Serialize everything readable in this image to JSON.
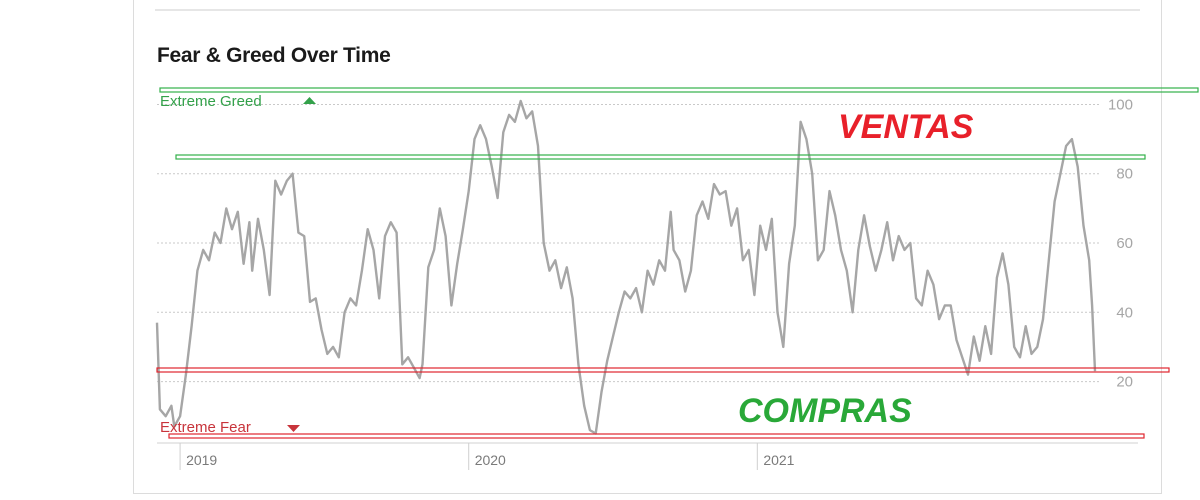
{
  "chart_data": {
    "type": "line",
    "title": "Fear & Greed Over Time",
    "xlabel": "",
    "ylabel": "",
    "ylim": [
      4,
      101
    ],
    "y_ticks": [
      20,
      40,
      60,
      80,
      100
    ],
    "x_ticks": [
      {
        "label": "2019",
        "x": 2019.0
      },
      {
        "label": "2020",
        "x": 2020.0
      },
      {
        "label": "2021",
        "x": 2021.0
      }
    ],
    "grid": true,
    "legend": "none",
    "top_zone_label": "Extreme Greed",
    "bottom_zone_label": "Extreme Fear",
    "line_color": "#a6a6a6",
    "series": [
      {
        "values": [
          [
            2018.92,
            37
          ],
          [
            2018.93,
            12
          ],
          [
            2018.95,
            10
          ],
          [
            2018.97,
            13
          ],
          [
            2018.98,
            7
          ],
          [
            2019.0,
            10
          ],
          [
            2019.02,
            22
          ],
          [
            2019.04,
            36
          ],
          [
            2019.06,
            52
          ],
          [
            2019.08,
            58
          ],
          [
            2019.1,
            55
          ],
          [
            2019.12,
            63
          ],
          [
            2019.14,
            60
          ],
          [
            2019.16,
            70
          ],
          [
            2019.18,
            64
          ],
          [
            2019.2,
            69
          ],
          [
            2019.22,
            54
          ],
          [
            2019.24,
            66
          ],
          [
            2019.25,
            52
          ],
          [
            2019.27,
            67
          ],
          [
            2019.29,
            58
          ],
          [
            2019.31,
            45
          ],
          [
            2019.33,
            78
          ],
          [
            2019.35,
            74
          ],
          [
            2019.37,
            78
          ],
          [
            2019.39,
            80
          ],
          [
            2019.41,
            63
          ],
          [
            2019.43,
            62
          ],
          [
            2019.45,
            43
          ],
          [
            2019.47,
            44
          ],
          [
            2019.49,
            35
          ],
          [
            2019.51,
            28
          ],
          [
            2019.53,
            30
          ],
          [
            2019.55,
            27
          ],
          [
            2019.57,
            40
          ],
          [
            2019.59,
            44
          ],
          [
            2019.61,
            42
          ],
          [
            2019.63,
            52
          ],
          [
            2019.65,
            64
          ],
          [
            2019.67,
            58
          ],
          [
            2019.69,
            44
          ],
          [
            2019.71,
            62
          ],
          [
            2019.73,
            66
          ],
          [
            2019.75,
            63
          ],
          [
            2019.77,
            25
          ],
          [
            2019.79,
            27
          ],
          [
            2019.81,
            24
          ],
          [
            2019.83,
            21
          ],
          [
            2019.84,
            25
          ],
          [
            2019.86,
            53
          ],
          [
            2019.88,
            58
          ],
          [
            2019.9,
            70
          ],
          [
            2019.92,
            62
          ],
          [
            2019.94,
            42
          ],
          [
            2019.96,
            54
          ],
          [
            2019.98,
            64
          ],
          [
            2020.0,
            75
          ],
          [
            2020.02,
            90
          ],
          [
            2020.04,
            94
          ],
          [
            2020.06,
            90
          ],
          [
            2020.08,
            82
          ],
          [
            2020.1,
            73
          ],
          [
            2020.12,
            92
          ],
          [
            2020.14,
            97
          ],
          [
            2020.16,
            95
          ],
          [
            2020.18,
            101
          ],
          [
            2020.2,
            96
          ],
          [
            2020.22,
            98
          ],
          [
            2020.24,
            88
          ],
          [
            2020.26,
            60
          ],
          [
            2020.28,
            52
          ],
          [
            2020.3,
            55
          ],
          [
            2020.32,
            47
          ],
          [
            2020.34,
            53
          ],
          [
            2020.36,
            44
          ],
          [
            2020.38,
            25
          ],
          [
            2020.4,
            13
          ],
          [
            2020.42,
            6
          ],
          [
            2020.44,
            5
          ],
          [
            2020.46,
            17
          ],
          [
            2020.48,
            26
          ],
          [
            2020.5,
            33
          ],
          [
            2020.52,
            40
          ],
          [
            2020.54,
            46
          ],
          [
            2020.56,
            44
          ],
          [
            2020.58,
            47
          ],
          [
            2020.6,
            40
          ],
          [
            2020.62,
            52
          ],
          [
            2020.64,
            48
          ],
          [
            2020.66,
            55
          ],
          [
            2020.68,
            52
          ],
          [
            2020.7,
            69
          ],
          [
            2020.71,
            58
          ],
          [
            2020.73,
            55
          ],
          [
            2020.75,
            46
          ],
          [
            2020.77,
            52
          ],
          [
            2020.79,
            68
          ],
          [
            2020.81,
            72
          ],
          [
            2020.83,
            67
          ],
          [
            2020.85,
            77
          ],
          [
            2020.87,
            74
          ],
          [
            2020.89,
            75
          ],
          [
            2020.91,
            65
          ],
          [
            2020.93,
            70
          ],
          [
            2020.95,
            55
          ],
          [
            2020.97,
            58
          ],
          [
            2020.99,
            45
          ],
          [
            2021.01,
            65
          ],
          [
            2021.03,
            58
          ],
          [
            2021.05,
            67
          ],
          [
            2021.07,
            40
          ],
          [
            2021.09,
            30
          ],
          [
            2021.11,
            54
          ],
          [
            2021.13,
            65
          ],
          [
            2021.15,
            95
          ],
          [
            2021.17,
            90
          ],
          [
            2021.19,
            80
          ],
          [
            2021.21,
            55
          ],
          [
            2021.23,
            58
          ],
          [
            2021.25,
            75
          ],
          [
            2021.27,
            68
          ],
          [
            2021.29,
            58
          ],
          [
            2021.31,
            52
          ],
          [
            2021.33,
            40
          ],
          [
            2021.35,
            58
          ],
          [
            2021.37,
            68
          ],
          [
            2021.39,
            59
          ],
          [
            2021.41,
            52
          ],
          [
            2021.43,
            58
          ],
          [
            2021.45,
            66
          ],
          [
            2021.47,
            55
          ],
          [
            2021.49,
            62
          ],
          [
            2021.51,
            58
          ],
          [
            2021.53,
            60
          ],
          [
            2021.55,
            44
          ],
          [
            2021.57,
            42
          ],
          [
            2021.59,
            52
          ],
          [
            2021.61,
            48
          ],
          [
            2021.63,
            38
          ],
          [
            2021.65,
            42
          ],
          [
            2021.67,
            42
          ],
          [
            2021.69,
            32
          ],
          [
            2021.71,
            27
          ],
          [
            2021.73,
            22
          ],
          [
            2021.75,
            33
          ],
          [
            2021.77,
            26
          ],
          [
            2021.79,
            36
          ],
          [
            2021.81,
            28
          ],
          [
            2021.83,
            50
          ],
          [
            2021.85,
            57
          ],
          [
            2021.87,
            48
          ],
          [
            2021.89,
            30
          ],
          [
            2021.91,
            27
          ],
          [
            2021.93,
            36
          ],
          [
            2021.95,
            28
          ],
          [
            2021.97,
            30
          ],
          [
            2021.99,
            38
          ],
          [
            2022.01,
            55
          ],
          [
            2022.03,
            72
          ],
          [
            2022.05,
            80
          ],
          [
            2022.07,
            88
          ],
          [
            2022.09,
            90
          ],
          [
            2022.11,
            82
          ],
          [
            2022.13,
            65
          ],
          [
            2022.15,
            55
          ],
          [
            2022.16,
            42
          ],
          [
            2022.17,
            23
          ]
        ]
      }
    ],
    "annotations": [
      {
        "text": "VENTAS",
        "color": "#e8202a"
      },
      {
        "text": "COMPRAS",
        "color": "#29a838"
      }
    ],
    "colors": {
      "greed": "#33a14a",
      "fear": "#c8343b",
      "band_green": "#33b049",
      "band_red": "#e0262e",
      "grid": "#c9c9c9",
      "tick_text": "#a6a6a6"
    }
  }
}
